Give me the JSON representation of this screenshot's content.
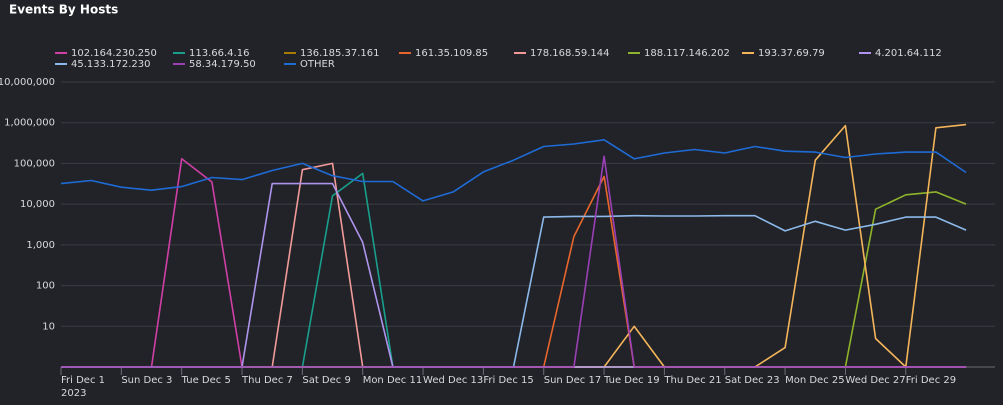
{
  "chart_data": {
    "type": "line",
    "title": "Events By Hosts",
    "log_scale": true,
    "grid": true,
    "legend": "top",
    "categories": [
      "Fri Dec 1",
      null,
      "Sun Dec 3",
      null,
      "Tue Dec 5",
      null,
      "Thu Dec 7",
      null,
      "Sat Dec 9",
      null,
      "Mon Dec 11",
      null,
      "Wed Dec 13",
      null,
      "Fri Dec 15",
      null,
      "Sun Dec 17",
      null,
      "Tue Dec 19",
      null,
      "Thu Dec 21",
      null,
      "Sat Dec 23",
      null,
      "Mon Dec 25",
      null,
      "Wed Dec 27",
      null,
      "Fri Dec 29",
      null,
      null
    ],
    "year": "2023",
    "ylim": [
      1,
      10000000
    ],
    "yticks": [
      10,
      100,
      {
        "value": 1000,
        "label": "1,000"
      },
      {
        "value": 10000,
        "label": "10,000"
      },
      {
        "value": 100000,
        "label": "100,000"
      },
      {
        "value": 1000000,
        "label": "1,000,000"
      },
      {
        "value": 10000000,
        "label": "10,000,000"
      }
    ],
    "series": [
      {
        "name": "102.164.230.250",
        "color": "#d03fa6",
        "values": [
          0,
          0,
          0,
          0,
          130000,
          35000,
          0,
          0,
          0,
          0,
          0,
          0,
          0,
          0,
          0,
          0,
          0,
          0,
          0,
          0,
          0,
          0,
          0,
          0,
          0,
          0,
          0,
          0,
          0,
          0,
          0
        ]
      },
      {
        "name": "113.66.4.16",
        "color": "#1a9e8c",
        "values": [
          0,
          0,
          0,
          0,
          0,
          0,
          0,
          0,
          0,
          16000,
          57000,
          0,
          0,
          0,
          0,
          0,
          0,
          0,
          0,
          0,
          0,
          0,
          0,
          0,
          0,
          0,
          0,
          0,
          0,
          0,
          0
        ]
      },
      {
        "name": "136.185.37.161",
        "color": "#a67c00",
        "values": [
          0,
          0,
          0,
          0,
          0,
          0,
          0,
          0,
          0,
          0,
          0,
          0,
          0,
          0,
          0,
          0,
          0,
          0,
          0,
          0,
          0,
          0,
          0,
          0,
          0,
          0,
          0,
          0,
          0,
          0,
          0
        ]
      },
      {
        "name": "161.35.109.85",
        "color": "#e8662c",
        "values": [
          0,
          0,
          0,
          0,
          0,
          0,
          0,
          0,
          0,
          0,
          0,
          0,
          0,
          0,
          0,
          0,
          0,
          1600,
          48000,
          0,
          0,
          0,
          0,
          0,
          0,
          0,
          0,
          0,
          0,
          0,
          0
        ]
      },
      {
        "name": "178.168.59.144",
        "color": "#f29a9a",
        "values": [
          0,
          0,
          0,
          0,
          0,
          0,
          0,
          0,
          70000,
          100000,
          0,
          0,
          0,
          0,
          0,
          0,
          0,
          0,
          0,
          0,
          0,
          0,
          0,
          0,
          0,
          0,
          0,
          0,
          0,
          0,
          0
        ]
      },
      {
        "name": "188.117.146.202",
        "color": "#8fb32a",
        "values": [
          0,
          0,
          0,
          0,
          0,
          0,
          0,
          0,
          0,
          0,
          0,
          0,
          0,
          0,
          0,
          0,
          0,
          0,
          0,
          0,
          0,
          0,
          0,
          0,
          0,
          0,
          0,
          7500,
          17000,
          20000,
          10000
        ]
      },
      {
        "name": "193.37.69.79",
        "color": "#f4b55a",
        "values": [
          0,
          0,
          0,
          0,
          0,
          0,
          0,
          0,
          0,
          0,
          0,
          0,
          0,
          0,
          0,
          0,
          0,
          0,
          0,
          10,
          0,
          0,
          0,
          0,
          3,
          120000,
          850000,
          5,
          0,
          750000,
          900000
        ]
      },
      {
        "name": "4.201.64.112",
        "color": "#ae94ec",
        "values": [
          0,
          0,
          0,
          0,
          0,
          0,
          0,
          32000,
          32000,
          32000,
          1150,
          0,
          0,
          0,
          0,
          0,
          0,
          0,
          0,
          0,
          0,
          0,
          0,
          0,
          0,
          0,
          0,
          0,
          0,
          0,
          0
        ]
      },
      {
        "name": "45.133.172.230",
        "color": "#8cb9ea",
        "values": [
          0,
          0,
          0,
          0,
          0,
          0,
          0,
          0,
          0,
          0,
          0,
          0,
          0,
          0,
          0,
          0,
          4800,
          5000,
          5000,
          5200,
          5100,
          5100,
          5200,
          5200,
          2200,
          3800,
          2300,
          3200,
          4800,
          4800,
          2300
        ]
      },
      {
        "name": "58.34.179.50",
        "color": "#9b3fb5",
        "values": [
          0,
          0,
          0,
          0,
          0,
          0,
          0,
          0,
          0,
          0,
          0,
          0,
          0,
          0,
          0,
          0,
          0,
          0,
          150000,
          0,
          0,
          0,
          0,
          0,
          0,
          0,
          0,
          0,
          0,
          0,
          0
        ]
      },
      {
        "name": "OTHER",
        "color": "#1f6bd6",
        "values": [
          32000,
          38000,
          26000,
          22000,
          27000,
          45000,
          40000,
          67000,
          100000,
          50000,
          36000,
          36000,
          12000,
          20000,
          62000,
          120000,
          260000,
          300000,
          380000,
          130000,
          180000,
          220000,
          180000,
          260000,
          200000,
          190000,
          140000,
          170000,
          190000,
          190000,
          60000
        ]
      }
    ]
  }
}
